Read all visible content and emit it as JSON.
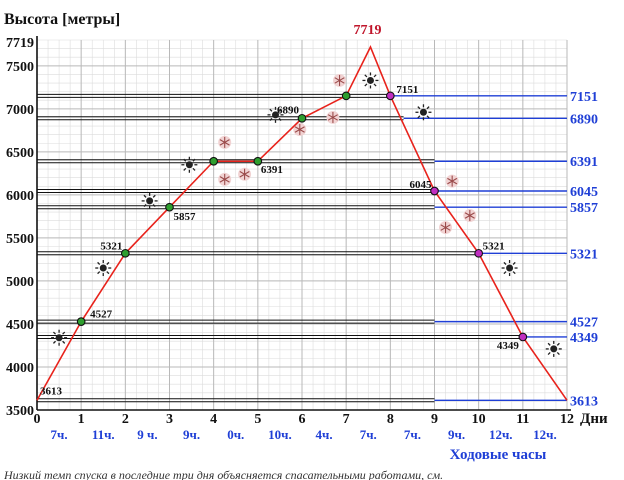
{
  "chart_data": {
    "type": "line",
    "ylabel": "Высота [метры]",
    "xlabel": "Ходовые часы",
    "x_unit_label": "Дни",
    "xlim": [
      0,
      12
    ],
    "ylim": [
      3500,
      7800
    ],
    "x_ticks": [
      "0",
      "1",
      "2",
      "3",
      "4",
      "5",
      "6",
      "7",
      "8",
      "9",
      "10",
      "11",
      "12"
    ],
    "y_ticks": [
      "3500",
      "4000",
      "4500",
      "5000",
      "5500",
      "6000",
      "6500",
      "7000",
      "7500"
    ],
    "y_top_label": "7719",
    "grid": true,
    "series": [
      {
        "x": [
          0,
          1,
          2,
          3,
          4,
          5,
          6,
          7,
          7.55,
          8,
          9,
          10,
          11,
          12
        ],
        "y": [
          3613,
          4527,
          5321,
          5857,
          6391,
          6391,
          6890,
          7151,
          7719,
          7151,
          6045,
          5321,
          4349,
          3613
        ]
      }
    ],
    "point_labels": [
      {
        "x": 0,
        "y": 3613,
        "text": "3613"
      },
      {
        "x": 1,
        "y": 4527,
        "text": "4527"
      },
      {
        "x": 2,
        "y": 5321,
        "text": "5321"
      },
      {
        "x": 3,
        "y": 5857,
        "text": "5857"
      },
      {
        "x": 5,
        "y": 6391,
        "text": "6391"
      },
      {
        "x": 6,
        "y": 6890,
        "text": "6890"
      },
      {
        "x": 8,
        "y": 7151,
        "text": "7151"
      },
      {
        "x": 9,
        "y": 6045,
        "text": "6045"
      },
      {
        "x": 10,
        "y": 5321,
        "text": "5321"
      },
      {
        "x": 11,
        "y": 4349,
        "text": "4349"
      }
    ],
    "summit_label": "7719",
    "right_axis_labels": [
      "7151",
      "6890",
      "6391",
      "6045",
      "5857",
      "5321",
      "4527",
      "4349",
      "3613"
    ],
    "markers": [
      {
        "x": 1,
        "y": 4527,
        "color": "#2e9e2e"
      },
      {
        "x": 2,
        "y": 5321,
        "color": "#2e9e2e"
      },
      {
        "x": 3,
        "y": 5857,
        "color": "#2e9e2e"
      },
      {
        "x": 4,
        "y": 6391,
        "color": "#2e9e2e"
      },
      {
        "x": 5,
        "y": 6391,
        "color": "#2e9e2e"
      },
      {
        "x": 6,
        "y": 6890,
        "color": "#2e9e2e"
      },
      {
        "x": 7,
        "y": 7151,
        "color": "#2e9e2e"
      },
      {
        "x": 8,
        "y": 7151,
        "color": "#c02ec0"
      },
      {
        "x": 9,
        "y": 6045,
        "color": "#c02ec0"
      },
      {
        "x": 10,
        "y": 5321,
        "color": "#c02ec0"
      },
      {
        "x": 11,
        "y": 4349,
        "color": "#c02ec0"
      }
    ],
    "hours": [
      "7ч.",
      "11ч.",
      "9 ч.",
      "9ч.",
      "0ч.",
      "10ч.",
      "4ч.",
      "7ч.",
      "7ч.",
      "9ч.",
      "12ч.",
      "12ч."
    ],
    "weather": [
      {
        "x": 0.5,
        "y": 4340,
        "icon": "sun-icon"
      },
      {
        "x": 1.5,
        "y": 5150,
        "icon": "sun-icon"
      },
      {
        "x": 2.55,
        "y": 5930,
        "icon": "sun-icon"
      },
      {
        "x": 3.45,
        "y": 6350,
        "icon": "sun-icon"
      },
      {
        "x": 4.25,
        "y": 6610,
        "icon": "snowflake-icon"
      },
      {
        "x": 4.25,
        "y": 6180,
        "icon": "snowflake-icon"
      },
      {
        "x": 4.7,
        "y": 6240,
        "icon": "snowflake-icon"
      },
      {
        "x": 5.4,
        "y": 6930,
        "icon": "sun-icon"
      },
      {
        "x": 5.95,
        "y": 6760,
        "icon": "snowflake-icon"
      },
      {
        "x": 6.7,
        "y": 6900,
        "icon": "snowflake-icon"
      },
      {
        "x": 6.85,
        "y": 7330,
        "icon": "snowflake-icon"
      },
      {
        "x": 7.55,
        "y": 7330,
        "icon": "sun-icon"
      },
      {
        "x": 8.75,
        "y": 6960,
        "icon": "sun-icon"
      },
      {
        "x": 9.4,
        "y": 6160,
        "icon": "snowflake-icon"
      },
      {
        "x": 9.25,
        "y": 5620,
        "icon": "snowflake-icon"
      },
      {
        "x": 9.8,
        "y": 5760,
        "icon": "snowflake-icon"
      },
      {
        "x": 10.7,
        "y": 5150,
        "icon": "sun-icon"
      },
      {
        "x": 11.7,
        "y": 4210,
        "icon": "sun-icon"
      }
    ],
    "colors": {
      "line": "#e8231c",
      "summit": "#c0162b",
      "blue": "#1f3fd6",
      "grid": "#b9b9b9",
      "sun": "#222222",
      "snow": "#d08a8a"
    }
  },
  "footnote": "Низкий темп спуска в последние три дня объясняется спасательными работами, см."
}
